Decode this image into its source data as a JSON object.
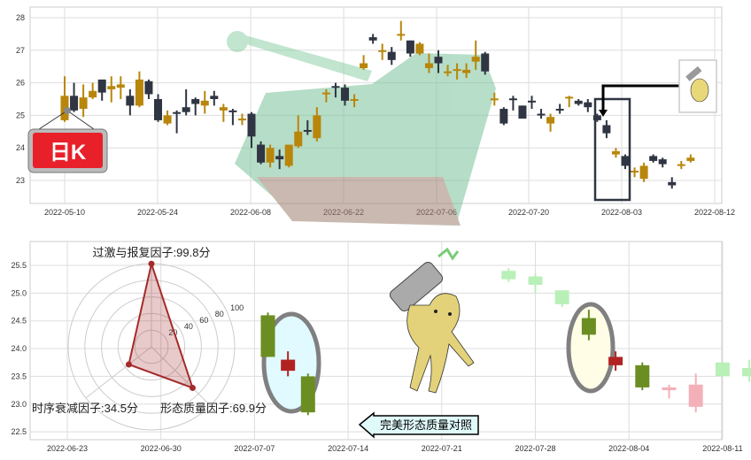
{
  "colors": {
    "up": "#b8860b",
    "down": "#2f3542",
    "badge": "#e8202a",
    "radar": "#a52a2a",
    "pat_green": "#6b8e23",
    "pat_red": "#b22222",
    "pat_lightgreen": "#b8f0b8",
    "pat_pink": "#f4b0b8"
  },
  "badge": {
    "text": "日K"
  },
  "callout": {
    "text": "完美形态质量对照"
  },
  "icons": [
    "tank-image",
    "cat-with-gun-image",
    "cat-thumbnail-icon"
  ],
  "chart_data": [
    {
      "type": "candlestick",
      "title": "",
      "ylim": [
        22.3,
        28.3
      ],
      "yticks": [
        "23",
        "24",
        "25",
        "26",
        "27",
        "28"
      ],
      "xticks": [
        "2022-05-10",
        "2022-05-24",
        "2022-06-08",
        "2022-06-22",
        "2022-07-06",
        "2022-07-20",
        "2022-08-03",
        "2022-08-12"
      ],
      "grid": true,
      "candles": [
        [
          25.6,
          24.85,
          26.2,
          24.8,
          "up"
        ],
        [
          25.6,
          25.15,
          26.0,
          25.1,
          "down"
        ],
        [
          25.55,
          25.2,
          25.95,
          24.95,
          "up"
        ],
        [
          25.75,
          25.55,
          26.0,
          25.5,
          "up"
        ],
        [
          26.1,
          25.7,
          26.1,
          25.45,
          "down"
        ],
        [
          25.9,
          25.8,
          26.2,
          25.4,
          "up"
        ],
        [
          25.95,
          25.85,
          26.2,
          25.5,
          "up"
        ],
        [
          25.6,
          25.3,
          25.8,
          25.0,
          "down"
        ],
        [
          26.1,
          25.3,
          26.35,
          25.25,
          "up"
        ],
        [
          26.05,
          25.65,
          26.1,
          25.5,
          "down"
        ],
        [
          25.5,
          24.85,
          25.65,
          24.8,
          "down"
        ],
        [
          25.0,
          24.75,
          25.15,
          24.7,
          "up"
        ],
        [
          25.1,
          25.05,
          25.15,
          24.45,
          "down"
        ],
        [
          25.25,
          25.1,
          25.8,
          25.0,
          "down"
        ],
        [
          25.5,
          25.35,
          25.55,
          25.0,
          "down"
        ],
        [
          25.45,
          25.3,
          25.75,
          25.05,
          "up"
        ],
        [
          25.6,
          25.5,
          25.75,
          25.3,
          "down"
        ],
        [
          25.25,
          25.15,
          25.35,
          24.8,
          "up"
        ],
        [
          25.15,
          25.1,
          25.2,
          24.7,
          "down"
        ],
        [
          24.9,
          24.85,
          25.05,
          24.7,
          "up"
        ],
        [
          25.05,
          24.35,
          25.1,
          24.0,
          "down"
        ],
        [
          24.1,
          23.55,
          24.2,
          23.5,
          "down"
        ],
        [
          24.0,
          23.55,
          24.1,
          23.4,
          "up"
        ],
        [
          23.75,
          23.65,
          23.95,
          23.35,
          "down"
        ],
        [
          24.1,
          23.45,
          24.1,
          23.4,
          "up"
        ],
        [
          24.5,
          24.05,
          25.0,
          24.0,
          "up"
        ],
        [
          24.55,
          24.5,
          24.85,
          24.4,
          "down"
        ],
        [
          25.0,
          24.3,
          25.25,
          24.2,
          "up"
        ],
        [
          25.7,
          25.65,
          25.8,
          25.4,
          "up"
        ],
        [
          25.9,
          25.85,
          26.0,
          25.55,
          "down"
        ],
        [
          25.85,
          25.45,
          25.95,
          25.3,
          "down"
        ],
        [
          25.5,
          25.45,
          25.65,
          25.25,
          "up"
        ],
        [
          26.6,
          26.45,
          26.85,
          26.4,
          "up"
        ],
        [
          27.4,
          27.3,
          27.5,
          27.2,
          "down"
        ],
        [
          27.0,
          26.95,
          27.2,
          26.7,
          "up"
        ],
        [
          26.95,
          26.7,
          27.1,
          26.55,
          "down"
        ],
        [
          27.5,
          27.45,
          27.9,
          27.3,
          "up"
        ],
        [
          27.3,
          26.9,
          27.3,
          26.8,
          "down"
        ],
        [
          27.2,
          26.9,
          27.25,
          26.85,
          "up"
        ],
        [
          26.6,
          26.45,
          26.9,
          26.3,
          "up"
        ],
        [
          26.8,
          26.6,
          27.0,
          26.3,
          "down"
        ],
        [
          26.35,
          26.3,
          26.55,
          26.2,
          "up"
        ],
        [
          26.42,
          26.38,
          26.6,
          26.1,
          "up"
        ],
        [
          26.4,
          26.3,
          26.6,
          26.15,
          "up"
        ],
        [
          26.8,
          26.65,
          27.3,
          26.4,
          "up"
        ],
        [
          26.9,
          26.35,
          26.95,
          26.25,
          "down"
        ],
        [
          25.52,
          25.48,
          25.7,
          25.3,
          "up"
        ],
        [
          25.2,
          24.75,
          25.25,
          24.7,
          "down"
        ],
        [
          25.52,
          25.48,
          25.6,
          25.15,
          "down"
        ],
        [
          25.3,
          24.9,
          25.3,
          24.9,
          "down"
        ],
        [
          25.45,
          25.4,
          25.6,
          25.2,
          "down"
        ],
        [
          25.05,
          25.0,
          25.2,
          24.9,
          "down"
        ],
        [
          24.95,
          24.75,
          25.05,
          24.5,
          "up"
        ],
        [
          25.2,
          25.15,
          25.35,
          25.05,
          "down"
        ],
        [
          25.57,
          25.53,
          25.6,
          25.25,
          "up"
        ],
        [
          25.45,
          25.35,
          25.5,
          25.3,
          "down"
        ],
        [
          25.4,
          25.25,
          25.5,
          25.1,
          "down"
        ],
        [
          25.0,
          24.85,
          25.05,
          24.8,
          "down"
        ],
        [
          24.7,
          24.45,
          24.85,
          24.3,
          "down"
        ],
        [
          23.9,
          23.8,
          24.0,
          23.7,
          "up"
        ],
        [
          23.75,
          23.45,
          23.8,
          23.35,
          "down"
        ],
        [
          23.3,
          23.25,
          23.4,
          23.1,
          "up"
        ],
        [
          23.45,
          23.05,
          23.55,
          22.95,
          "up"
        ],
        [
          23.75,
          23.6,
          23.8,
          23.55,
          "down"
        ],
        [
          23.65,
          23.5,
          23.7,
          23.4,
          "down"
        ],
        [
          22.95,
          22.85,
          23.1,
          22.75,
          "down"
        ],
        [
          23.5,
          23.45,
          23.6,
          23.35,
          "up"
        ],
        [
          23.7,
          23.6,
          23.8,
          23.55,
          "up"
        ]
      ]
    },
    {
      "type": "candlestick",
      "title": "",
      "ylim": [
        22.35,
        25.75
      ],
      "yticks": [
        "22.5",
        "23.0",
        "23.5",
        "24.0",
        "24.5",
        "25.0",
        "25.5"
      ],
      "xticks": [
        "2022-06-23",
        "2022-06-30",
        "2022-07-07",
        "2022-07-14",
        "2022-07-21",
        "2022-07-28",
        "2022-08-04",
        "2022-08-11"
      ],
      "grid": true,
      "candles": [
        {
          "date": "2022-07-08",
          "o": 24.6,
          "c": 23.85,
          "h": 24.65,
          "l": 23.85,
          "color": "pat_green"
        },
        {
          "date": "2022-07-09.5",
          "o": 23.8,
          "c": 23.6,
          "h": 23.95,
          "l": 23.5,
          "color": "pat_red"
        },
        {
          "date": "2022-07-11",
          "o": 23.5,
          "c": 22.85,
          "h": 23.55,
          "l": 22.8,
          "color": "pat_green"
        },
        {
          "date": "2022-07-26",
          "o": 25.4,
          "c": 25.25,
          "h": 25.45,
          "l": 25.2,
          "color": "pat_lightgreen"
        },
        {
          "date": "2022-07-28",
          "o": 25.3,
          "c": 25.15,
          "h": 25.35,
          "l": 25.0,
          "color": "pat_lightgreen"
        },
        {
          "date": "2022-07-30",
          "o": 25.05,
          "c": 24.8,
          "h": 25.05,
          "l": 24.75,
          "color": "pat_lightgreen"
        },
        {
          "date": "2022-08-01",
          "o": 24.55,
          "c": 24.25,
          "h": 24.7,
          "l": 24.15,
          "color": "pat_green"
        },
        {
          "date": "2022-08-03",
          "o": 23.85,
          "c": 23.7,
          "h": 23.95,
          "l": 23.6,
          "color": "pat_red"
        },
        {
          "date": "2022-08-05",
          "o": 23.7,
          "c": 23.3,
          "h": 23.75,
          "l": 23.25,
          "color": "pat_green"
        },
        {
          "date": "2022-08-07",
          "o": 23.3,
          "c": 23.25,
          "h": 23.35,
          "l": 23.1,
          "color": "pat_pink"
        },
        {
          "date": "2022-08-09",
          "o": 23.35,
          "c": 22.95,
          "h": 23.55,
          "l": 22.85,
          "color": "pat_pink"
        },
        {
          "date": "2022-08-11",
          "o": 23.75,
          "c": 23.5,
          "h": 23.75,
          "l": 23.5,
          "color": "pat_lightgreen"
        },
        {
          "date": "2022-08-13",
          "o": 23.65,
          "c": 23.5,
          "h": 23.8,
          "l": 23.4,
          "color": "pat_lightgreen"
        }
      ]
    },
    {
      "type": "radar",
      "rticks": [
        "20",
        "40",
        "60",
        "80",
        "100"
      ],
      "rmax": 100,
      "axes": [
        {
          "label": "过激与报复因子:99.8分",
          "value": 99.8
        },
        {
          "label": "时序衰减因子:34.5分",
          "value": 34.5
        },
        {
          "label": "形态质量因子:69.9分",
          "value": 69.9
        }
      ]
    }
  ]
}
